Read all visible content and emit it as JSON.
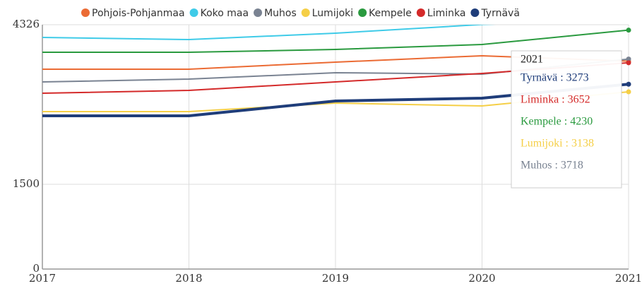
{
  "chart_data": {
    "type": "line",
    "x": [
      2017,
      2018,
      2019,
      2020,
      2021
    ],
    "xlim": [
      2017,
      2021
    ],
    "xticks": [
      2017,
      2018,
      2019,
      2020,
      2021
    ],
    "ylim": [
      0,
      4326
    ],
    "yticks": [
      0,
      1500,
      4326
    ],
    "grid": true,
    "series": [
      {
        "name": "Pohjois-Pohjanmaa",
        "color": "#eb6b34",
        "values": [
          3538,
          3538,
          3663,
          3776,
          3680
        ]
      },
      {
        "name": "Koko maa",
        "color": "#3fcbe8",
        "values": [
          4101,
          4063,
          4176,
          4330,
          4420
        ]
      },
      {
        "name": "Muhos",
        "color": "#7a8392",
        "values": [
          3313,
          3363,
          3476,
          3451,
          3718
        ]
      },
      {
        "name": "Lumijoki",
        "color": "#f5cf47",
        "values": [
          2788,
          2788,
          2938,
          2888,
          3138
        ]
      },
      {
        "name": "Kempele",
        "color": "#2a9a3f",
        "values": [
          3838,
          3838,
          3888,
          3976,
          4230
        ]
      },
      {
        "name": "Liminka",
        "color": "#d42a2a",
        "values": [
          3113,
          3163,
          3313,
          3463,
          3652
        ]
      },
      {
        "name": "Tyrnävä",
        "color": "#1f3d7a",
        "values": [
          2713,
          2713,
          2976,
          3026,
          3273
        ],
        "thick": true
      }
    ],
    "tooltip": {
      "title": "2021",
      "lines": [
        {
          "text": "Tyrnävä : 3273",
          "color": "#1f3d7a"
        },
        {
          "text": "Liminka : 3652",
          "color": "#d42a2a"
        },
        {
          "text": "Kempele : 4230",
          "color": "#2a9a3f"
        },
        {
          "text": "Lumijoki : 3138",
          "color": "#f5cf47"
        },
        {
          "text": "Muhos : 3718",
          "color": "#7a8392"
        }
      ]
    }
  }
}
